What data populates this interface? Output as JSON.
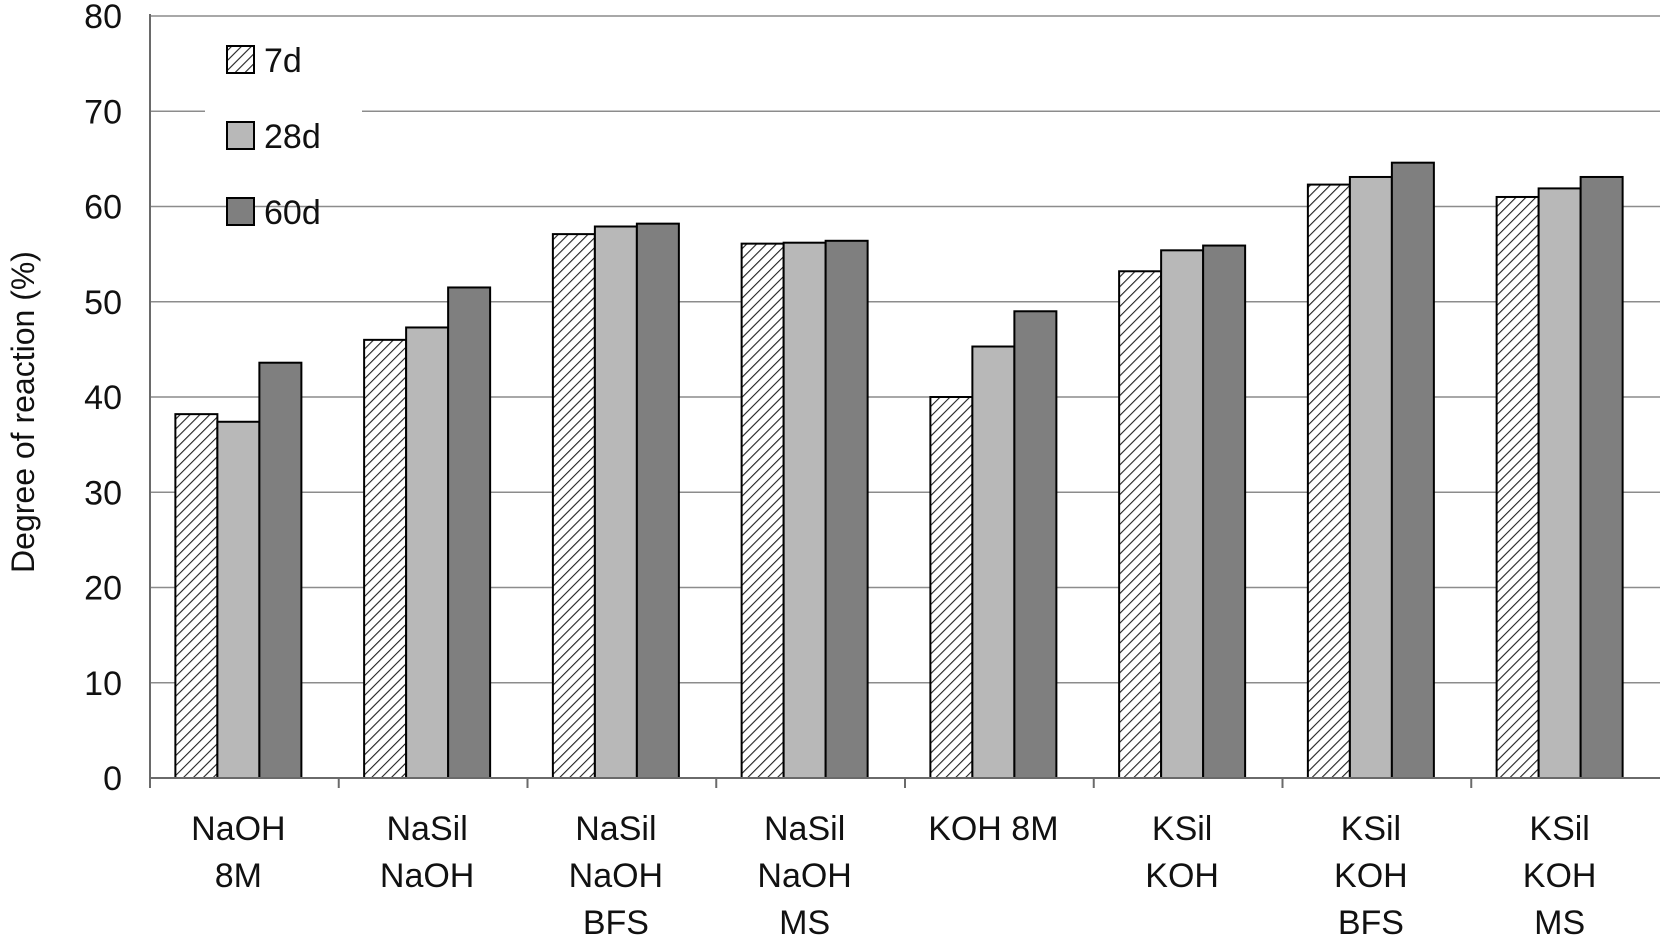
{
  "chart_data": {
    "type": "bar",
    "title": "",
    "xlabel": "",
    "ylabel": "Degree of reaction (%)",
    "ylim": [
      0,
      80
    ],
    "yticks": [
      0,
      10,
      20,
      30,
      40,
      50,
      60,
      70,
      80
    ],
    "grid": true,
    "legend_position": "top-left",
    "categories": [
      [
        "NaOH",
        "8M"
      ],
      [
        "NaSil",
        "NaOH"
      ],
      [
        "NaSil",
        "NaOH",
        "BFS"
      ],
      [
        "NaSil",
        "NaOH",
        "MS"
      ],
      [
        "KOH 8M"
      ],
      [
        "KSil",
        "KOH"
      ],
      [
        "KSil",
        "KOH",
        "BFS"
      ],
      [
        "KSil",
        "KOH",
        "MS"
      ]
    ],
    "series": [
      {
        "name": "7d",
        "pattern": "hatch",
        "fill": "#ffffff",
        "values": [
          38.2,
          46.0,
          57.1,
          56.1,
          40.0,
          53.2,
          62.3,
          61.0
        ]
      },
      {
        "name": "28d",
        "pattern": "solid",
        "fill": "#b8b8b8",
        "values": [
          37.4,
          47.3,
          57.9,
          56.2,
          45.3,
          55.4,
          63.1,
          61.9
        ]
      },
      {
        "name": "60d",
        "pattern": "solid",
        "fill": "#7f7f7f",
        "values": [
          43.6,
          51.5,
          58.2,
          56.4,
          49.0,
          55.9,
          64.6,
          63.1
        ]
      }
    ]
  }
}
